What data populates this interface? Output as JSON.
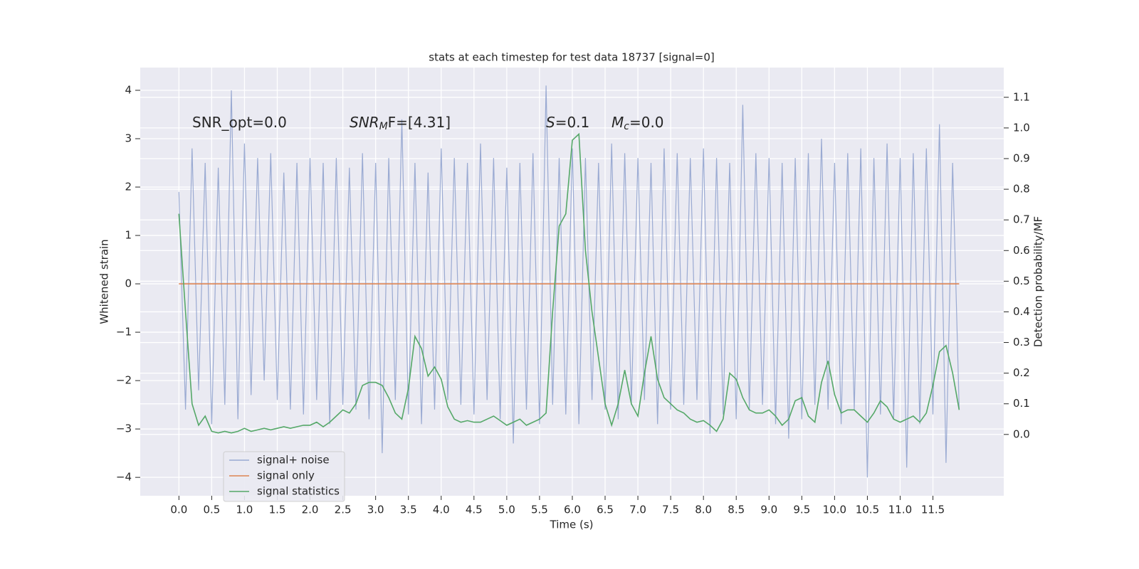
{
  "chart_data": {
    "type": "line",
    "title": "stats at each timestep for test data 18737 [signal=0]",
    "xlabel": "Time (s)",
    "ylabel": "Whitened strain",
    "y2label": "Detection probability/MF",
    "annotations": [
      {
        "base": "SNR_opt=0.0"
      },
      {
        "base": "SNR",
        "sub": "M",
        "rest": "F=[4.31]"
      },
      {
        "base": "S",
        "rest": "=0.1"
      },
      {
        "base": "M",
        "sub": "c",
        "rest": "=0.0"
      }
    ],
    "background": "#eaeaf2",
    "grid": true,
    "legend": "lower left",
    "x": [
      0.0,
      0.1,
      0.2,
      0.3,
      0.4,
      0.5,
      0.6,
      0.7,
      0.8,
      0.9,
      1.0,
      1.1,
      1.2,
      1.3,
      1.4,
      1.5,
      1.6,
      1.7,
      1.8,
      1.9,
      2.0,
      2.1,
      2.2,
      2.3,
      2.4,
      2.5,
      2.6,
      2.7,
      2.8,
      2.9,
      3.0,
      3.1,
      3.2,
      3.3,
      3.4,
      3.5,
      3.6,
      3.7,
      3.8,
      3.9,
      4.0,
      4.1,
      4.2,
      4.3,
      4.4,
      4.5,
      4.6,
      4.7,
      4.8,
      4.9,
      5.0,
      5.1,
      5.2,
      5.3,
      5.4,
      5.5,
      5.6,
      5.7,
      5.8,
      5.9,
      6.0,
      6.1,
      6.2,
      6.3,
      6.4,
      6.5,
      6.6,
      6.7,
      6.8,
      6.9,
      7.0,
      7.1,
      7.2,
      7.3,
      7.4,
      7.5,
      7.6,
      7.7,
      7.8,
      7.9,
      8.0,
      8.1,
      8.2,
      8.3,
      8.4,
      8.5,
      8.6,
      8.7,
      8.8,
      8.9,
      9.0,
      9.1,
      9.2,
      9.3,
      9.4,
      9.5,
      9.6,
      9.7,
      9.8,
      9.9,
      10.0,
      10.1,
      10.2,
      10.3,
      10.4,
      10.5,
      10.6,
      10.7,
      10.8,
      10.9,
      11.0,
      11.1,
      11.2,
      11.3,
      11.4,
      11.5,
      11.6,
      11.7,
      11.8,
      11.9
    ],
    "series": [
      {
        "name": "signal+ noise",
        "color": "#8c9fcd",
        "values": [
          1.9,
          -2.6,
          2.8,
          -2.2,
          2.5,
          -2.9,
          2.4,
          -2.5,
          4.0,
          -2.8,
          2.9,
          -2.3,
          2.6,
          -2.0,
          2.7,
          -2.4,
          2.3,
          -2.6,
          2.5,
          -2.7,
          2.6,
          -2.4,
          2.5,
          -2.9,
          2.6,
          -2.5,
          2.4,
          -2.6,
          2.7,
          -2.8,
          2.5,
          -3.5,
          2.6,
          -2.4,
          3.4,
          -2.7,
          2.5,
          -2.9,
          2.3,
          -2.6,
          2.8,
          -2.4,
          2.6,
          -2.5,
          2.5,
          -2.7,
          2.9,
          -2.4,
          2.6,
          -2.8,
          2.4,
          -3.3,
          2.5,
          -2.6,
          2.7,
          -2.9,
          4.1,
          -2.5,
          2.6,
          -2.7,
          2.8,
          -2.9,
          2.6,
          -2.4,
          2.5,
          -2.6,
          2.9,
          -2.8,
          2.7,
          -2.5,
          2.6,
          -2.4,
          2.5,
          -2.9,
          2.8,
          -2.6,
          2.7,
          -2.5,
          2.6,
          -2.4,
          2.8,
          -3.1,
          2.6,
          -2.7,
          2.5,
          -2.8,
          3.7,
          -2.6,
          2.7,
          -2.5,
          2.6,
          -2.9,
          2.5,
          -3.2,
          2.6,
          -2.8,
          2.7,
          -2.5,
          3.0,
          -2.6,
          2.5,
          -2.9,
          2.7,
          -2.6,
          2.8,
          -4.0,
          2.6,
          -2.7,
          2.9,
          -2.8,
          2.6,
          -3.8,
          2.7,
          -2.9,
          2.8,
          -2.7,
          3.3,
          -3.7,
          2.5,
          -2.6
        ]
      },
      {
        "name": "signal only",
        "color": "#dd8452",
        "values": [
          0,
          0,
          0,
          0,
          0,
          0,
          0,
          0,
          0,
          0,
          0,
          0,
          0,
          0,
          0,
          0,
          0,
          0,
          0,
          0,
          0,
          0,
          0,
          0,
          0,
          0,
          0,
          0,
          0,
          0,
          0,
          0,
          0,
          0,
          0,
          0,
          0,
          0,
          0,
          0,
          0,
          0,
          0,
          0,
          0,
          0,
          0,
          0,
          0,
          0,
          0,
          0,
          0,
          0,
          0,
          0,
          0,
          0,
          0,
          0,
          0,
          0,
          0,
          0,
          0,
          0,
          0,
          0,
          0,
          0,
          0,
          0,
          0,
          0,
          0,
          0,
          0,
          0,
          0,
          0,
          0,
          0,
          0,
          0,
          0,
          0,
          0,
          0,
          0,
          0,
          0,
          0,
          0,
          0,
          0,
          0,
          0,
          0,
          0,
          0,
          0,
          0,
          0,
          0,
          0,
          0,
          0,
          0,
          0,
          0,
          0,
          0,
          0,
          0,
          0,
          0,
          0,
          0,
          0,
          0
        ]
      },
      {
        "name": "signal statistics",
        "color": "#55a868",
        "axis": "y2",
        "values": [
          0.72,
          0.4,
          0.1,
          0.03,
          0.06,
          0.01,
          0.005,
          0.01,
          0.005,
          0.01,
          0.02,
          0.01,
          0.015,
          0.02,
          0.015,
          0.02,
          0.025,
          0.02,
          0.025,
          0.03,
          0.03,
          0.04,
          0.025,
          0.04,
          0.06,
          0.08,
          0.07,
          0.1,
          0.16,
          0.17,
          0.17,
          0.16,
          0.12,
          0.07,
          0.05,
          0.15,
          0.32,
          0.28,
          0.19,
          0.22,
          0.18,
          0.09,
          0.05,
          0.04,
          0.045,
          0.04,
          0.04,
          0.05,
          0.06,
          0.045,
          0.03,
          0.04,
          0.05,
          0.03,
          0.04,
          0.05,
          0.07,
          0.4,
          0.68,
          0.72,
          0.96,
          0.98,
          0.6,
          0.4,
          0.25,
          0.1,
          0.03,
          0.1,
          0.21,
          0.1,
          0.06,
          0.2,
          0.32,
          0.18,
          0.12,
          0.1,
          0.08,
          0.07,
          0.05,
          0.04,
          0.045,
          0.03,
          0.01,
          0.05,
          0.2,
          0.18,
          0.12,
          0.08,
          0.07,
          0.07,
          0.08,
          0.06,
          0.03,
          0.05,
          0.11,
          0.12,
          0.06,
          0.04,
          0.17,
          0.24,
          0.13,
          0.07,
          0.08,
          0.08,
          0.06,
          0.04,
          0.07,
          0.11,
          0.09,
          0.05,
          0.04,
          0.05,
          0.06,
          0.04,
          0.07,
          0.16,
          0.27,
          0.29,
          0.2,
          0.08
        ]
      }
    ],
    "xlim": [
      -0.59,
      12.58
    ],
    "xticks": [
      {
        "value": 0,
        "label": "0.0"
      },
      0.5,
      {
        "value": 1,
        "label": "1.0"
      },
      1.5,
      {
        "value": 2,
        "label": "2.0"
      },
      2.5,
      {
        "value": 3,
        "label": "3.0"
      },
      3.5,
      {
        "value": 4,
        "label": "4.0"
      },
      4.5,
      {
        "value": 5,
        "label": "5.0"
      },
      5.5,
      {
        "value": 6,
        "label": "6.0"
      },
      6.5,
      {
        "value": 7,
        "label": "7.0"
      },
      7.5,
      {
        "value": 8,
        "label": "8.0"
      },
      8.5,
      {
        "value": 9,
        "label": "9.0"
      },
      9.5,
      {
        "value": 10,
        "label": "10.0"
      },
      10.5,
      {
        "value": 11,
        "label": "11.0"
      },
      11.5
    ],
    "ylim": [
      -4.38,
      4.47
    ],
    "yticks": [
      {
        "value": -4,
        "label": "−4"
      },
      {
        "value": -3,
        "label": "−3"
      },
      {
        "value": -2,
        "label": "−2"
      },
      {
        "value": -1,
        "label": "−1"
      },
      0,
      1,
      2,
      3,
      4
    ],
    "y2lim": [
      -0.2,
      1.197
    ],
    "y2ticks": [
      {
        "value": 0,
        "label": "0.0"
      },
      0.1,
      0.2,
      0.3,
      0.4,
      0.5,
      0.6,
      0.7,
      0.8,
      0.9,
      {
        "value": 1,
        "label": "1.0"
      },
      1.1
    ]
  }
}
